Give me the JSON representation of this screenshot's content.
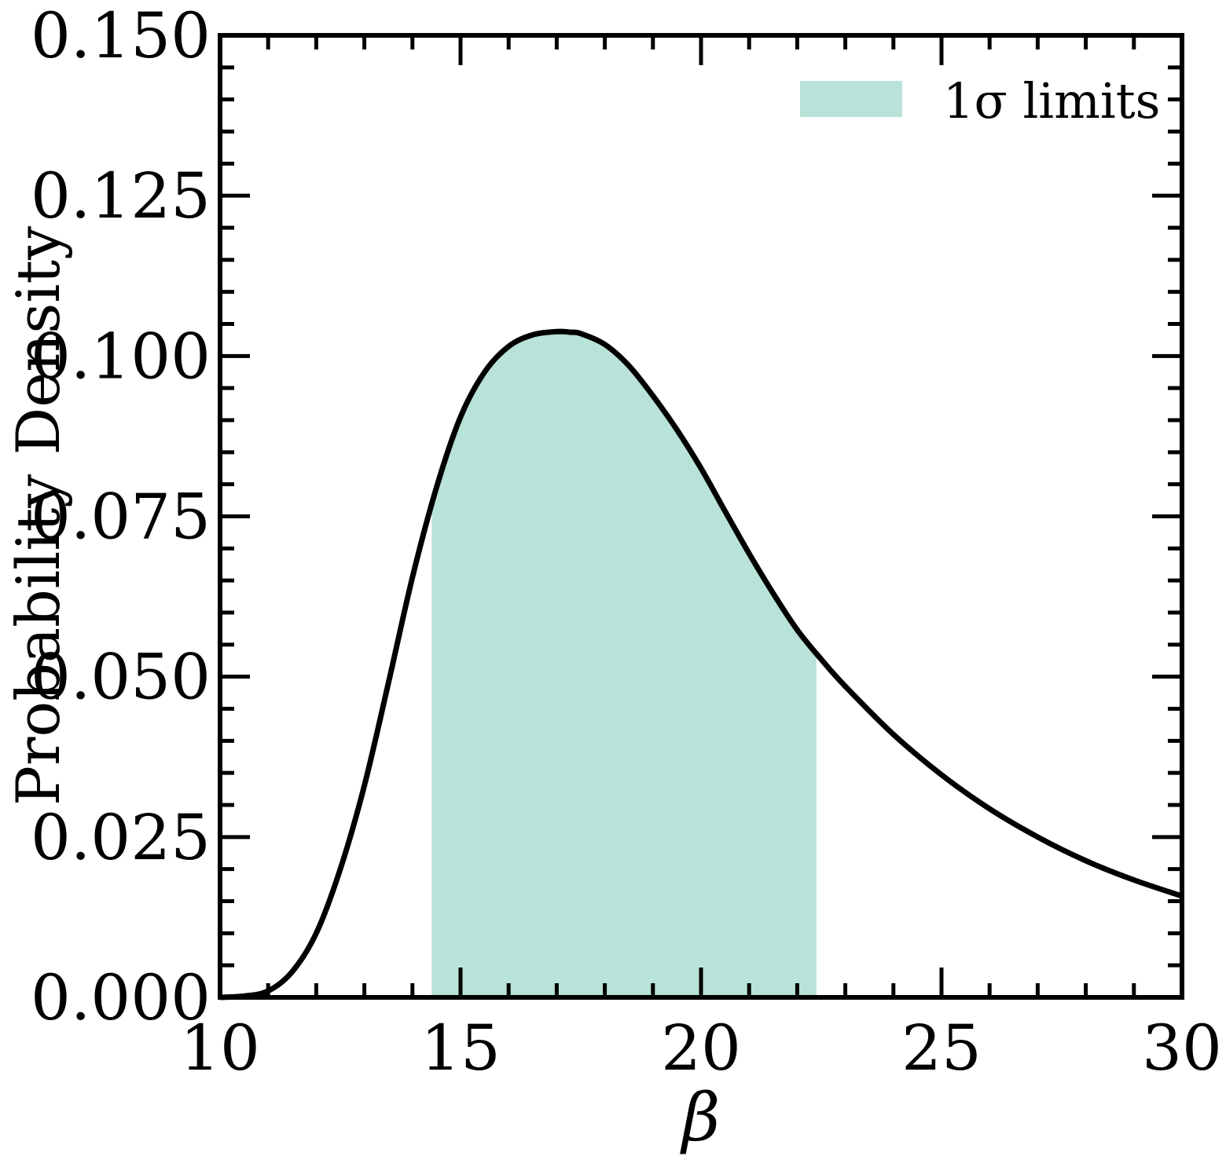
{
  "chart_data": {
    "type": "line",
    "title": "",
    "xlabel": "β",
    "ylabel": "Probability Density",
    "xlim": [
      10,
      30
    ],
    "ylim": [
      0,
      0.15
    ],
    "x_ticks": [
      "10",
      "15",
      "20",
      "25",
      "30"
    ],
    "y_ticks": [
      "0.000",
      "0.025",
      "0.050",
      "0.075",
      "0.100",
      "0.125",
      "0.150"
    ],
    "grid": false,
    "legend": {
      "placement": "top-right",
      "entries": [
        {
          "label": "1σ limits",
          "color": "#b9e2d8"
        }
      ]
    },
    "series": [
      {
        "line_color": "#000000",
        "x": [
          10.0,
          10.5,
          11.0,
          11.5,
          12.0,
          12.5,
          13.0,
          13.5,
          14.0,
          14.5,
          15.0,
          15.5,
          16.0,
          16.5,
          17.0,
          17.3,
          17.5,
          18.0,
          18.5,
          19.0,
          19.5,
          20.0,
          20.5,
          21.0,
          21.5,
          22.0,
          22.5,
          23.0,
          24.0,
          25.0,
          26.0,
          27.0,
          28.0,
          29.0,
          30.0
        ],
        "values": [
          0.0,
          0.0002,
          0.001,
          0.004,
          0.01,
          0.02,
          0.033,
          0.049,
          0.0655,
          0.0795,
          0.0905,
          0.0975,
          0.1015,
          0.1033,
          0.1038,
          0.1037,
          0.1035,
          0.1018,
          0.0985,
          0.0938,
          0.0885,
          0.0825,
          0.0758,
          0.0692,
          0.063,
          0.0573,
          0.0527,
          0.0485,
          0.041,
          0.0347,
          0.0294,
          0.025,
          0.0213,
          0.0183,
          0.0158
        ]
      }
    ],
    "shaded_region": {
      "label": "1σ limits",
      "color": "#b9e2d8",
      "x_range": [
        14.4,
        22.4
      ]
    }
  }
}
